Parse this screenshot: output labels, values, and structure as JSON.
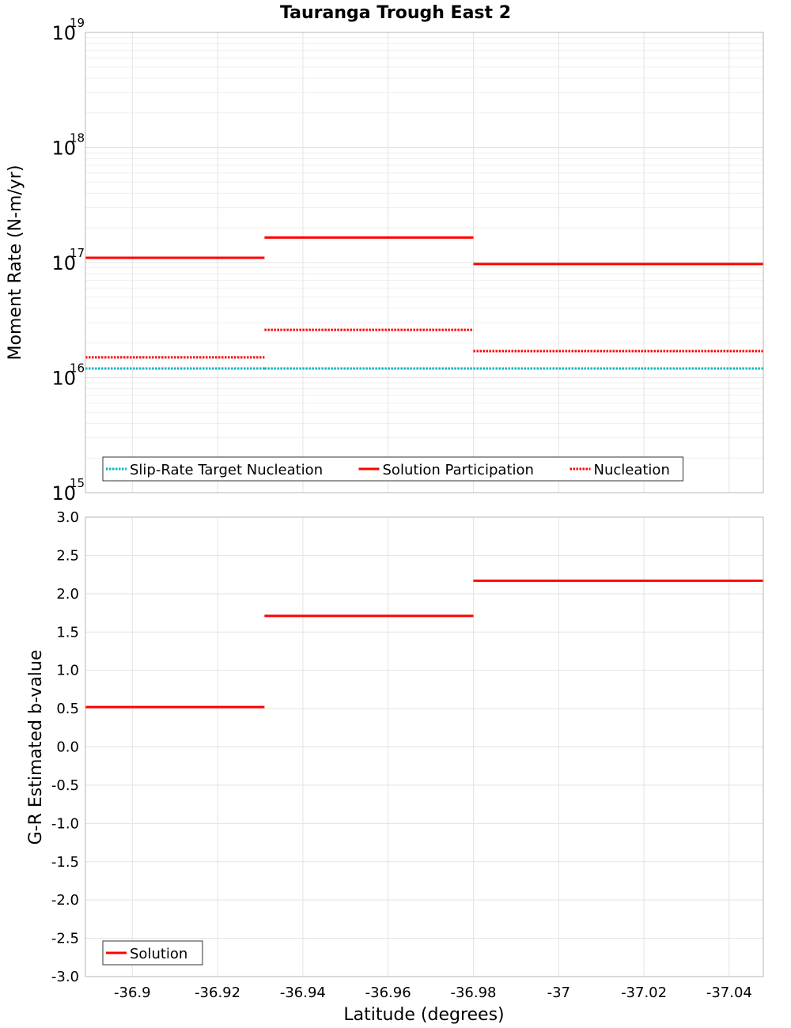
{
  "chart_data": {
    "title": "Tauranga Trough East 2",
    "xlabel": "Latitude (degrees)",
    "xlim": [
      -36.889,
      -37.048
    ],
    "x_ticks": [
      {
        "value": -36.9,
        "label": "-36.9"
      },
      {
        "value": -36.92,
        "label": "-36.92"
      },
      {
        "value": -36.94,
        "label": "-36.94"
      },
      {
        "value": -36.96,
        "label": "-36.96"
      },
      {
        "value": -36.98,
        "label": "-36.98"
      },
      {
        "value": -37.0,
        "label": "-37"
      },
      {
        "value": -37.02,
        "label": "-37.02"
      },
      {
        "value": -37.04,
        "label": "-37.04"
      }
    ],
    "panels": [
      {
        "id": "moment",
        "type": "line",
        "scale": "log",
        "ylabel": "Moment Rate (N-m/yr)",
        "ylim": [
          1000000000000000.0,
          1e+19
        ],
        "y_ticks": [
          {
            "base": "10",
            "exp": "15",
            "value": 15
          },
          {
            "base": "10",
            "exp": "16",
            "value": 16
          },
          {
            "base": "10",
            "exp": "17",
            "value": 17
          },
          {
            "base": "10",
            "exp": "18",
            "value": 18
          },
          {
            "base": "10",
            "exp": "19",
            "value": 19
          }
        ],
        "legend": {
          "position": "bottom-left",
          "entries": [
            {
              "label": "Slip-Rate Target Nucleation",
              "color": "#00b7c2",
              "style": "dotted"
            },
            {
              "label": "Solution Participation",
              "color": "#ff0000",
              "style": "solid"
            },
            {
              "label": "Nucleation",
              "color": "#ff0000",
              "style": "dotted"
            }
          ]
        },
        "series": [
          {
            "name": "Slip-Rate Target Nucleation",
            "color": "#00b7c2",
            "style": "dotted",
            "segments": [
              {
                "x0": -36.889,
                "x1": -36.931,
                "y": 1.2e+16
              },
              {
                "x0": -36.931,
                "x1": -36.98,
                "y": 1.2e+16
              },
              {
                "x0": -36.98,
                "x1": -37.048,
                "y": 1.2e+16
              }
            ]
          },
          {
            "name": "Solution Participation",
            "color": "#ff0000",
            "style": "solid",
            "segments": [
              {
                "x0": -36.889,
                "x1": -36.931,
                "y": 1.1e+17
              },
              {
                "x0": -36.931,
                "x1": -36.98,
                "y": 1.65e+17
              },
              {
                "x0": -36.98,
                "x1": -37.048,
                "y": 9.7e+16
              }
            ]
          },
          {
            "name": "Nucleation",
            "color": "#ff0000",
            "style": "dotted",
            "segments": [
              {
                "x0": -36.889,
                "x1": -36.931,
                "y": 1.5e+16
              },
              {
                "x0": -36.931,
                "x1": -36.98,
                "y": 2.6e+16
              },
              {
                "x0": -36.98,
                "x1": -37.048,
                "y": 1.7e+16
              }
            ]
          }
        ]
      },
      {
        "id": "bvalue",
        "type": "line",
        "scale": "linear",
        "ylabel": "G-R Estimated b-value",
        "ylim": [
          -3.0,
          3.0
        ],
        "y_ticks": [
          {
            "value": 3.0,
            "label": "3.0"
          },
          {
            "value": 2.5,
            "label": "2.5"
          },
          {
            "value": 2.0,
            "label": "2.0"
          },
          {
            "value": 1.5,
            "label": "1.5"
          },
          {
            "value": 1.0,
            "label": "1.0"
          },
          {
            "value": 0.5,
            "label": "0.5"
          },
          {
            "value": 0.0,
            "label": "0.0"
          },
          {
            "value": -0.5,
            "label": "-0.5"
          },
          {
            "value": -1.0,
            "label": "-1.0"
          },
          {
            "value": -1.5,
            "label": "-1.5"
          },
          {
            "value": -2.0,
            "label": "-2.0"
          },
          {
            "value": -2.5,
            "label": "-2.5"
          },
          {
            "value": -3.0,
            "label": "-3.0"
          }
        ],
        "legend": {
          "position": "bottom-left",
          "entries": [
            {
              "label": "Solution",
              "color": "#ff0000",
              "style": "solid"
            }
          ]
        },
        "series": [
          {
            "name": "Solution",
            "color": "#ff0000",
            "style": "solid",
            "segments": [
              {
                "x0": -36.889,
                "x1": -36.931,
                "y": 0.52
              },
              {
                "x0": -36.931,
                "x1": -36.98,
                "y": 1.71
              },
              {
                "x0": -36.98,
                "x1": -37.048,
                "y": 2.17
              }
            ]
          }
        ]
      }
    ]
  }
}
